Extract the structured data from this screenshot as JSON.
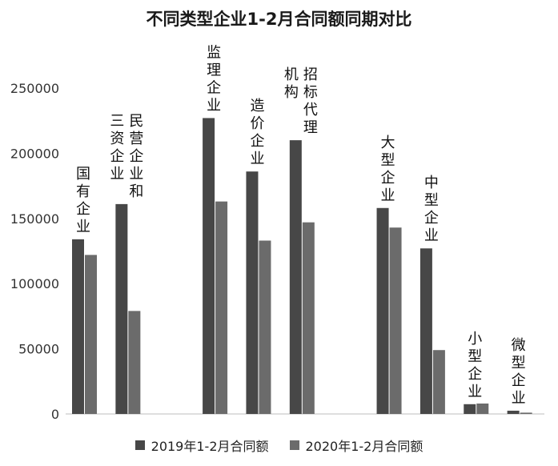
{
  "chart_data": {
    "type": "bar",
    "title": "不同类型企业1-2月合同额同期对比",
    "xlabel": "",
    "ylabel": "",
    "ylim": [
      0,
      250000
    ],
    "yticks": [
      "0",
      "50000",
      "100000",
      "150000",
      "200000",
      "250000"
    ],
    "grid": false,
    "legend_position": "bottom",
    "categories": [
      "国有企业",
      "民营企业和三资企业",
      "",
      "监理企业",
      "造价企业",
      "招标代理机构",
      "",
      "大型企业",
      "中型企业",
      "小型企业",
      "微型企业"
    ],
    "category_label_lines": [
      [
        "国有企业"
      ],
      [
        "民营企业和",
        "三资企业"
      ],
      [],
      [
        "监理企业"
      ],
      [
        "造价企业"
      ],
      [
        "招标代理",
        "机构"
      ],
      [],
      [
        "大型企业"
      ],
      [
        "中型企业"
      ],
      [
        "小型企业"
      ],
      [
        "微型企业"
      ]
    ],
    "series": [
      {
        "name": "2019年1-2月合同额",
        "color": "#474747",
        "values": [
          134000,
          161000,
          null,
          227000,
          186000,
          210000,
          null,
          158000,
          127000,
          7500,
          2500
        ]
      },
      {
        "name": "2020年1-2月合同额",
        "color": "#6b6b6b",
        "values": [
          122000,
          79000,
          null,
          163000,
          133000,
          147000,
          null,
          143000,
          49000,
          8000,
          1000
        ]
      }
    ]
  }
}
